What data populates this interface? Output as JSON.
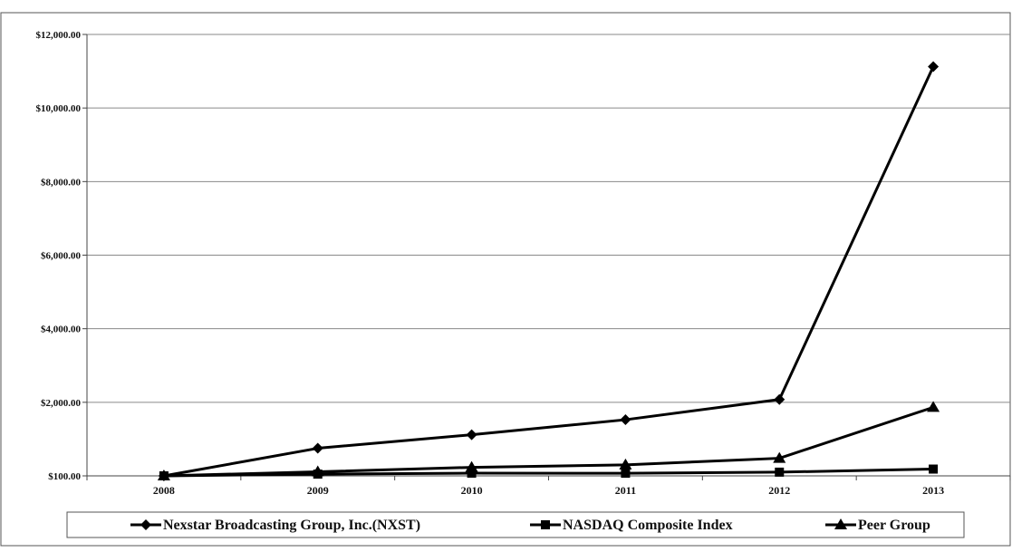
{
  "chart_data": {
    "type": "line",
    "categories": [
      "2008",
      "2009",
      "2010",
      "2011",
      "2012",
      "2013"
    ],
    "ylim": [
      100,
      12000
    ],
    "yticks": [
      {
        "value": 100,
        "label": "$100.00"
      },
      {
        "value": 2000,
        "label": "$2,000.00"
      },
      {
        "value": 4000,
        "label": "$4,000.00"
      },
      {
        "value": 6000,
        "label": "$6,000.00"
      },
      {
        "value": 8000,
        "label": "$8,000.00"
      },
      {
        "value": 10000,
        "label": "$10,000.00"
      },
      {
        "value": 12000,
        "label": "$12,000.00"
      }
    ],
    "grid": true,
    "legend_position": "bottom",
    "series": [
      {
        "name": "Nexstar Broadcasting Group, Inc.(NXST)",
        "marker": "diamond",
        "color": "#000000",
        "values": [
          100,
          813,
          1163,
          1550,
          2075,
          11125
        ]
      },
      {
        "name": "NASDAQ Composite Index",
        "marker": "square",
        "color": "#000000",
        "values": [
          100,
          145,
          170,
          168,
          196,
          275
        ]
      },
      {
        "name": "Peer Group",
        "marker": "triangle",
        "color": "#000000",
        "values": [
          100,
          205,
          320,
          385,
          555,
          1870
        ]
      }
    ]
  }
}
